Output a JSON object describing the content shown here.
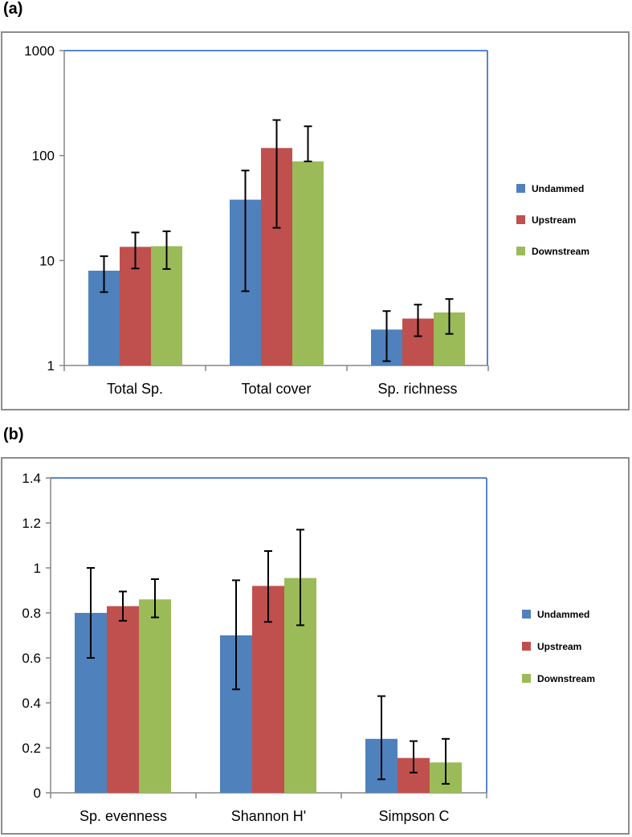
{
  "panels": {
    "a_label": "(a)",
    "b_label": "(b)"
  },
  "colors": {
    "undammed": "#4f81bd",
    "upstream": "#c0504d",
    "downstream": "#9bbb59",
    "axis_frame": "#1f5fbf",
    "axis": "#868686"
  },
  "chart_data": [
    {
      "id": "a",
      "type": "bar",
      "scale": "log",
      "categories": [
        "Total Sp.",
        "Total cover",
        "Sp. richness"
      ],
      "ylim": [
        1,
        1000
      ],
      "yticks": [
        1,
        10,
        100,
        1000
      ],
      "ytick_labels": [
        "1",
        "10",
        "100",
        "1000"
      ],
      "series": [
        {
          "name": "Undammed",
          "color": "#4f81bd",
          "values": [
            8.0,
            38.0,
            2.2
          ],
          "err_low": [
            5.0,
            5.1,
            1.1
          ],
          "err_high": [
            11.0,
            72.0,
            3.3
          ]
        },
        {
          "name": "Upstream",
          "color": "#c0504d",
          "values": [
            13.5,
            118.0,
            2.8
          ],
          "err_low": [
            8.4,
            20.5,
            1.9
          ],
          "err_high": [
            18.5,
            218.0,
            3.8
          ]
        },
        {
          "name": "Downstream",
          "color": "#9bbb59",
          "values": [
            13.7,
            88.0,
            3.2
          ],
          "err_low": [
            8.3,
            88.0,
            2.0
          ],
          "err_high": [
            19.0,
            190.0,
            4.3
          ]
        }
      ],
      "legend": [
        "Undammed",
        "Upstream",
        "Downstream"
      ],
      "legend_position": "right"
    },
    {
      "id": "b",
      "type": "bar",
      "scale": "linear",
      "categories": [
        "Sp. evenness",
        "Shannon H'",
        "Simpson C"
      ],
      "ylim": [
        0,
        1.4
      ],
      "yticks": [
        0,
        0.2,
        0.4,
        0.6,
        0.8,
        1.0,
        1.2,
        1.4
      ],
      "ytick_labels": [
        "0",
        "0.2",
        "0.4",
        "0.6",
        "0.8",
        "1",
        "1.2",
        "1.4"
      ],
      "series": [
        {
          "name": "Undammed",
          "color": "#4f81bd",
          "values": [
            0.8,
            0.7,
            0.24
          ],
          "err_low": [
            0.6,
            0.46,
            0.06
          ],
          "err_high": [
            1.0,
            0.945,
            0.43
          ]
        },
        {
          "name": "Upstream",
          "color": "#c0504d",
          "values": [
            0.83,
            0.92,
            0.155
          ],
          "err_low": [
            0.765,
            0.76,
            0.09
          ],
          "err_high": [
            0.895,
            1.075,
            0.23
          ]
        },
        {
          "name": "Downstream",
          "color": "#9bbb59",
          "values": [
            0.86,
            0.955,
            0.135
          ],
          "err_low": [
            0.78,
            0.745,
            0.04
          ],
          "err_high": [
            0.95,
            1.17,
            0.24
          ]
        }
      ],
      "legend": [
        "Undammed",
        "Upstream",
        "Downstream"
      ],
      "legend_position": "right"
    }
  ]
}
